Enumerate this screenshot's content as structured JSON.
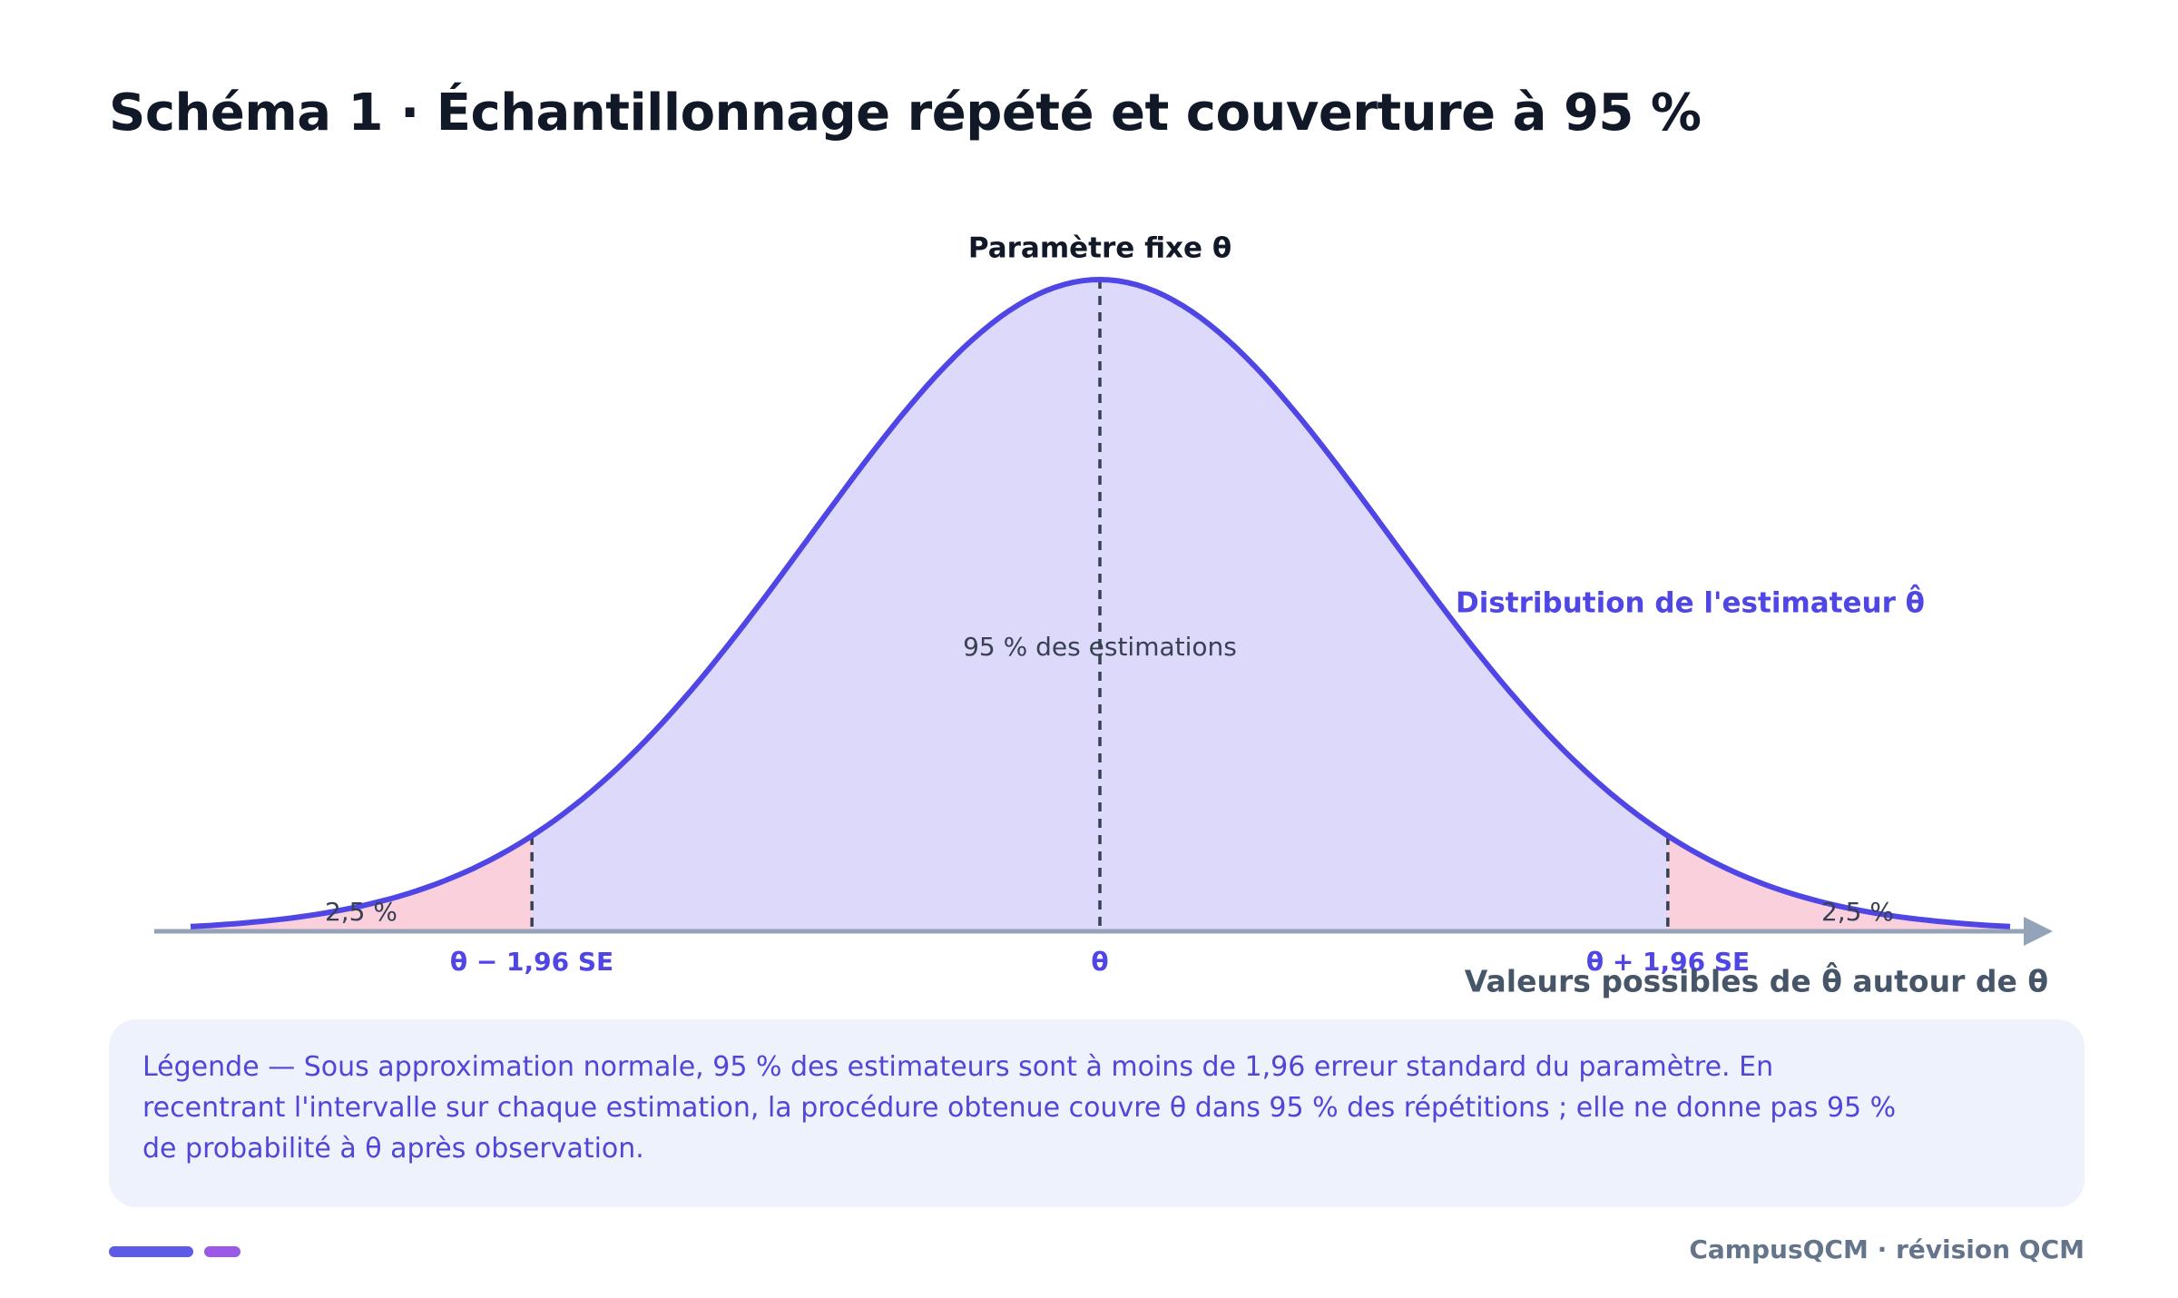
{
  "header": {
    "title": "Schéma 1 · Échantillonnage répété et couverture à 95 %"
  },
  "diagram": {
    "parameter_label": "Paramètre fixe θ",
    "curve_label": "Distribution de l'estimateur θ̂",
    "center_label": "95 % des estimations",
    "left_tail_label": "2,5 %",
    "right_tail_label": "2,5 %",
    "axis_ticks": [
      "θ − 1,96 SE",
      "θ",
      "θ + 1,96 SE"
    ],
    "axis_title": "Valeurs possibles de θ̂ autour de θ"
  },
  "legend": {
    "lines": [
      "Légende — Sous approximation normale, 95 % des estimateurs sont à moins de 1,96 erreur standard du paramètre. En",
      "recentrant l'intervalle sur chaque estimation, la procédure obtenue couvre θ dans 95 % des répétitions ; elle ne donne pas 95 %",
      "de probabilité à θ après observation."
    ]
  },
  "footer": {
    "brand": "CampusQCM · révision QCM"
  }
}
